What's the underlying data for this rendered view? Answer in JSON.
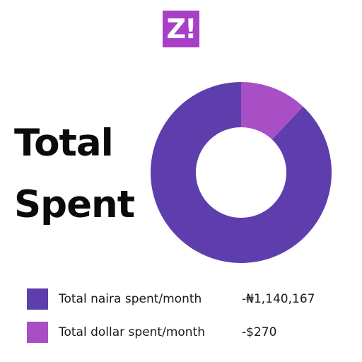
{
  "logo": {
    "text": "Z!",
    "color": "#a83fc7"
  },
  "title": {
    "line1": "Total",
    "line2": "Spent"
  },
  "legend": [
    {
      "label": "Total naira spent/month",
      "value": "-₦1,140,167",
      "color": "#5e3eac"
    },
    {
      "label": "Total dollar spent/month",
      "value": "-$270",
      "color": "#a84fc6"
    }
  ],
  "chart_data": {
    "type": "pie",
    "categories": [
      "Total naira spent/month",
      "Total dollar spent/month"
    ],
    "values": [
      88,
      12
    ],
    "colors": [
      "#5e3eac",
      "#a84fc6"
    ],
    "hole": "donut",
    "legend": "bottom"
  }
}
